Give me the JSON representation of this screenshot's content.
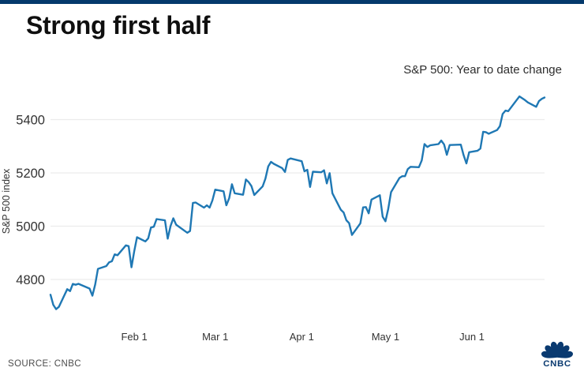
{
  "header": {
    "title": "Strong first half"
  },
  "chart": {
    "subtitle": "S&P 500: Year to date change",
    "y_axis_label": "S&P 500 index"
  },
  "footer": {
    "source": "SOURCE: CNBC",
    "logo_text": "CNBC"
  },
  "colors": {
    "top_bar": "#04396c",
    "line": "#1f78b4",
    "grid": "#ececec",
    "brand": "#0a3a70",
    "text": "#333333"
  },
  "chart_data": {
    "type": "line",
    "title": "Strong first half",
    "subtitle": "S&P 500: Year to date change",
    "xlabel": "",
    "ylabel": "S&P 500 index",
    "ylim": [
      4600,
      5550
    ],
    "grid": "horizontal-only",
    "legend": "none",
    "y_ticks": [
      5400,
      5200,
      5000,
      4800
    ],
    "x_ticks": [
      {
        "label": "Feb 1",
        "date": "02-01"
      },
      {
        "label": "Mar 1",
        "date": "03-01"
      },
      {
        "label": "Apr 1",
        "date": "04-01"
      },
      {
        "label": "May 1",
        "date": "05-01"
      },
      {
        "label": "Jun 1",
        "date": "06-01"
      }
    ],
    "series": [
      {
        "name": "S&P 500 index (2024 year-to-date daily close)",
        "dates": [
          "01-02",
          "01-03",
          "01-04",
          "01-05",
          "01-08",
          "01-09",
          "01-10",
          "01-11",
          "01-12",
          "01-16",
          "01-17",
          "01-18",
          "01-19",
          "01-22",
          "01-23",
          "01-24",
          "01-25",
          "01-26",
          "01-29",
          "01-30",
          "01-31",
          "02-01",
          "02-02",
          "02-05",
          "02-06",
          "02-07",
          "02-08",
          "02-09",
          "02-12",
          "02-13",
          "02-14",
          "02-15",
          "02-16",
          "02-20",
          "02-21",
          "02-22",
          "02-23",
          "02-26",
          "02-27",
          "02-28",
          "02-29",
          "03-01",
          "03-04",
          "03-05",
          "03-06",
          "03-07",
          "03-08",
          "03-11",
          "03-12",
          "03-13",
          "03-14",
          "03-15",
          "03-18",
          "03-19",
          "03-20",
          "03-21",
          "03-22",
          "03-25",
          "03-26",
          "03-27",
          "03-28",
          "04-01",
          "04-02",
          "04-03",
          "04-04",
          "04-05",
          "04-08",
          "04-09",
          "04-10",
          "04-11",
          "04-12",
          "04-15",
          "04-16",
          "04-17",
          "04-18",
          "04-19",
          "04-22",
          "04-23",
          "04-24",
          "04-25",
          "04-26",
          "04-29",
          "04-30",
          "05-01",
          "05-02",
          "05-03",
          "05-06",
          "05-07",
          "05-08",
          "05-09",
          "05-10",
          "05-13",
          "05-14",
          "05-15",
          "05-16",
          "05-17",
          "05-20",
          "05-21",
          "05-22",
          "05-23",
          "05-24",
          "05-28",
          "05-29",
          "05-30",
          "05-31",
          "06-03",
          "06-04",
          "06-05",
          "06-06",
          "06-07",
          "06-10",
          "06-11",
          "06-12",
          "06-13",
          "06-14",
          "06-17",
          "06-18",
          "06-20",
          "06-21",
          "06-24",
          "06-25",
          "06-26",
          "06-27"
        ],
        "values": [
          4742.83,
          4704.81,
          4688.68,
          4697.24,
          4763.54,
          4756.5,
          4783.45,
          4780.24,
          4783.83,
          4765.98,
          4739.21,
          4780.94,
          4839.81,
          4850.43,
          4864.6,
          4868.55,
          4894.16,
          4890.97,
          4927.93,
          4924.97,
          4845.65,
          4906.19,
          4958.61,
          4942.81,
          4954.23,
          4995.06,
          4997.91,
          5026.61,
          5021.84,
          4953.17,
          5000.62,
          5029.73,
          5005.57,
          4975.51,
          4981.8,
          5087.03,
          5088.8,
          5069.53,
          5078.18,
          5069.76,
          5096.27,
          5137.08,
          5130.95,
          5078.65,
          5104.76,
          5157.36,
          5123.69,
          5117.94,
          5175.27,
          5165.31,
          5150.48,
          5117.09,
          5149.42,
          5178.51,
          5224.62,
          5241.53,
          5234.18,
          5218.19,
          5203.58,
          5248.49,
          5254.35,
          5243.77,
          5205.81,
          5211.49,
          5147.21,
          5204.34,
          5202.39,
          5209.91,
          5160.64,
          5199.06,
          5123.41,
          5061.82,
          5051.41,
          5022.21,
          5011.12,
          4967.23,
          5010.6,
          5070.55,
          5071.63,
          5048.42,
          5099.96,
          5116.17,
          5035.69,
          5018.39,
          5064.2,
          5127.79,
          5180.74,
          5187.7,
          5187.67,
          5214.08,
          5222.68,
          5221.42,
          5246.68,
          5308.15,
          5297.1,
          5303.27,
          5308.13,
          5321.41,
          5307.01,
          5267.84,
          5304.72,
          5306.04,
          5266.95,
          5235.48,
          5277.51,
          5283.4,
          5291.34,
          5354.03,
          5352.96,
          5346.99,
          5360.79,
          5375.32,
          5421.03,
          5433.74,
          5431.6,
          5473.23,
          5487.03,
          5473.17,
          5464.62,
          5447.87,
          5469.3,
          5477.9,
          5482.87
        ]
      }
    ]
  }
}
